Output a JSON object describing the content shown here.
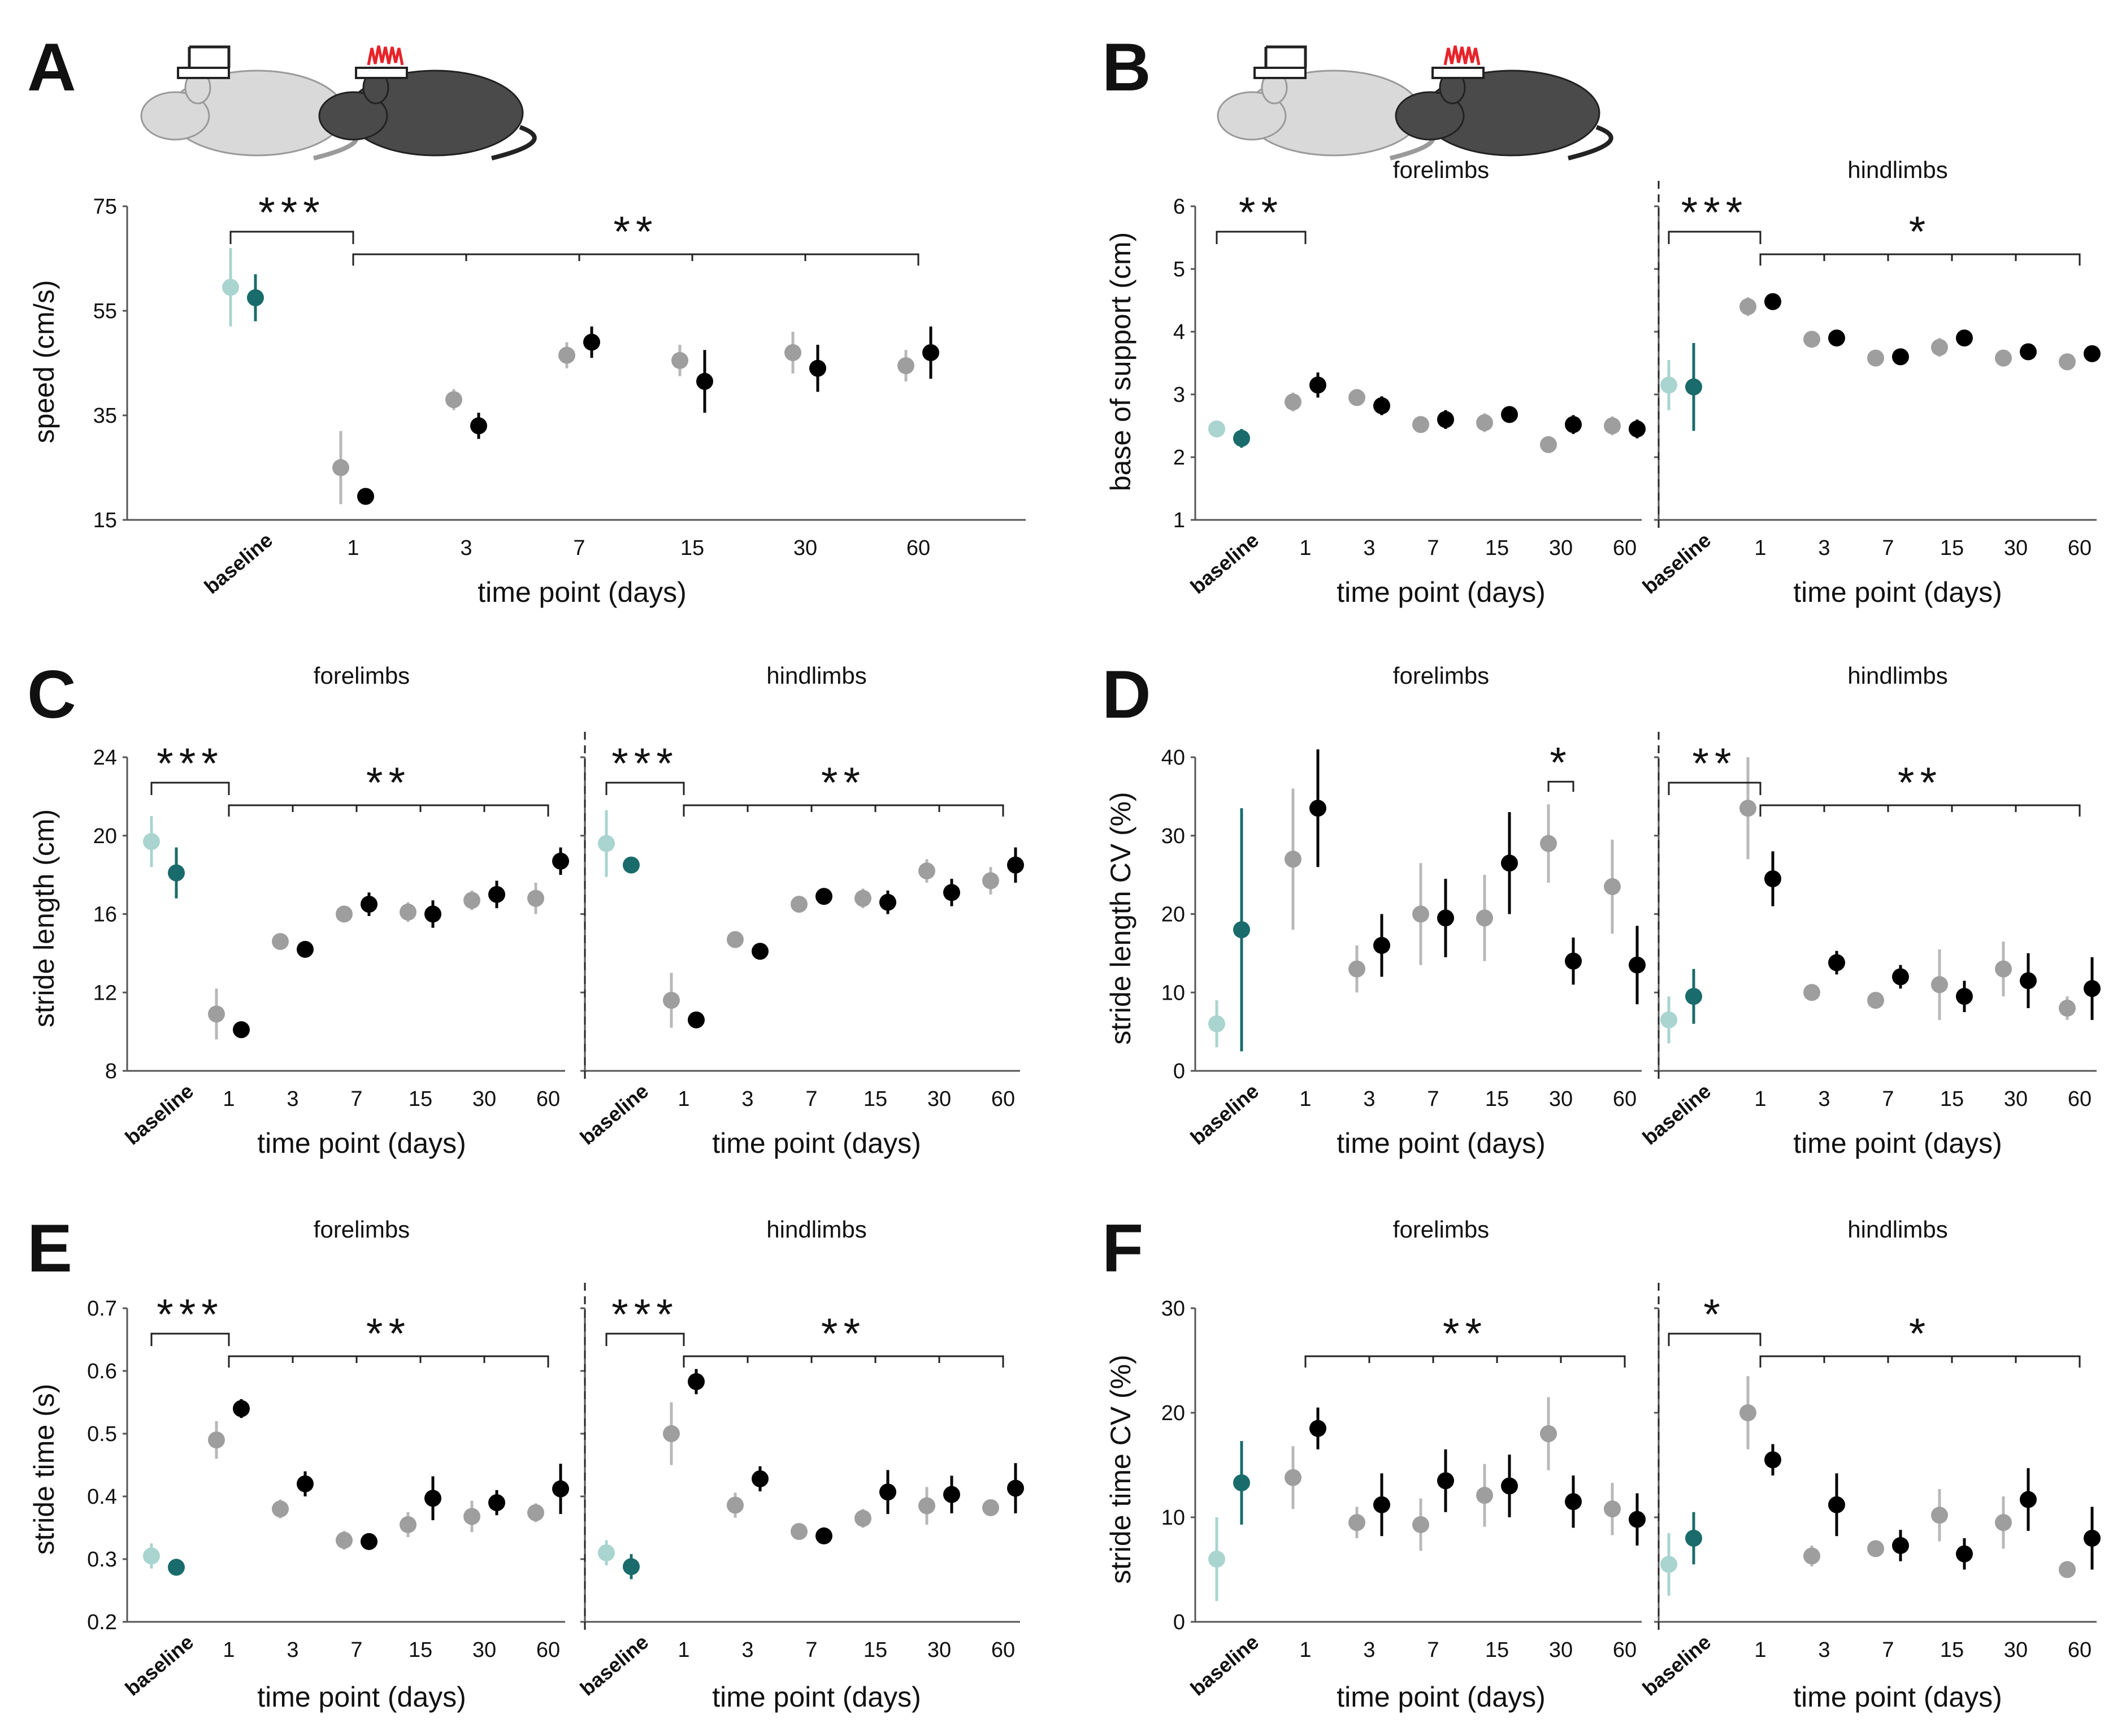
{
  "colors": {
    "sham_baseline": "#a9d4cf",
    "tbi_baseline": "#1a6b6b",
    "sham": "#9e9e9e",
    "tbi": "#000000",
    "error_sham_baseline": "#a9d4cf",
    "error_tbi_baseline": "#1a6b6b",
    "error_sham": "#b8b8b8",
    "error_tbi": "#000000",
    "mouse_sham": "#d9d9d9",
    "mouse_tbi": "#4a4a4a",
    "implant_sham": "#ffffff",
    "implant_tbi": "#e8232a"
  },
  "icons": {
    "sham_mouse": "mouse-sham-icon",
    "tbi_mouse": "mouse-tbi-icon"
  },
  "chart_data": [
    {
      "type": "scatter",
      "panel": "A",
      "ylabel": "speed (cm/s)",
      "xlabel": "time point (days)",
      "baseline_label": "baseline",
      "x_ticks": [
        "1",
        "3",
        "7",
        "15",
        "30",
        "60"
      ],
      "ylim": [
        15,
        75
      ],
      "y_ticks": [
        "15",
        "35",
        "55",
        "75"
      ],
      "subplots": [
        {
          "title": "",
          "baseline": {
            "sham": {
              "mean": 59.5,
              "err": 7.5
            },
            "tbi": {
              "mean": 57.5,
              "err": 4.5
            }
          },
          "sham": {
            "mean": [
              25,
              38,
              46.5,
              45.5,
              47,
              44.5
            ],
            "err": [
              7,
              2,
              2.5,
              3,
              4,
              3
            ]
          },
          "tbi": {
            "mean": [
              19.5,
              33,
              49,
              41.5,
              44,
              47
            ],
            "err": [
              1,
              2.5,
              3,
              6,
              4.5,
              5
            ]
          },
          "sig": [
            {
              "label": "***",
              "span": "baseline-1"
            },
            {
              "label": "**",
              "from": "1",
              "to": "60"
            }
          ]
        }
      ]
    },
    {
      "type": "scatter",
      "panel": "B",
      "ylabel": "base of support (cm)",
      "xlabel": "time point (days)",
      "baseline_label": "baseline",
      "x_ticks": [
        "1",
        "3",
        "7",
        "15",
        "30",
        "60"
      ],
      "ylim": [
        1,
        6
      ],
      "y_ticks": [
        "1",
        "2",
        "3",
        "4",
        "5",
        "6"
      ],
      "subplots": [
        {
          "title": "forelimbs",
          "baseline": {
            "sham": {
              "mean": 2.45,
              "err": 0.1
            },
            "tbi": {
              "mean": 2.3,
              "err": 0.15
            }
          },
          "sham": {
            "mean": [
              2.88,
              2.95,
              2.52,
              2.55,
              2.2,
              2.5
            ],
            "err": [
              0.15,
              0.1,
              0.1,
              0.15,
              0.1,
              0.15
            ]
          },
          "tbi": {
            "mean": [
              3.15,
              2.82,
              2.6,
              2.68,
              2.52,
              2.45
            ],
            "err": [
              0.2,
              0.15,
              0.15,
              0.1,
              0.15,
              0.15
            ]
          },
          "sig": [
            {
              "label": "**",
              "span": "baseline-1"
            }
          ]
        },
        {
          "title": "hindlimbs",
          "baseline": {
            "sham": {
              "mean": 3.15,
              "err": 0.4
            },
            "tbi": {
              "mean": 3.12,
              "err": 0.7
            }
          },
          "sham": {
            "mean": [
              4.4,
              3.88,
              3.58,
              3.75,
              3.58,
              3.52
            ],
            "err": [
              0.15,
              0.1,
              0.08,
              0.15,
              0.08,
              0.1
            ]
          },
          "tbi": {
            "mean": [
              4.48,
              3.9,
              3.6,
              3.9,
              3.68,
              3.65
            ],
            "err": [
              0.08,
              0.08,
              0.1,
              0.08,
              0.08,
              0.12
            ]
          },
          "sig": [
            {
              "label": "***",
              "span": "baseline-1"
            },
            {
              "label": "*",
              "from": "1",
              "to": "60"
            }
          ]
        }
      ]
    },
    {
      "type": "scatter",
      "panel": "C",
      "ylabel": "stride length (cm)",
      "xlabel": "time point (days)",
      "baseline_label": "baseline",
      "x_ticks": [
        "1",
        "3",
        "7",
        "15",
        "30",
        "60"
      ],
      "ylim": [
        8,
        24
      ],
      "y_ticks": [
        "8",
        "12",
        "16",
        "20",
        "24"
      ],
      "subplots": [
        {
          "title": "forelimbs",
          "baseline": {
            "sham": {
              "mean": 19.7,
              "err": 1.3
            },
            "tbi": {
              "mean": 18.1,
              "err": 1.3
            }
          },
          "sham": {
            "mean": [
              10.9,
              14.6,
              16.0,
              16.1,
              16.7,
              16.8
            ],
            "err": [
              1.3,
              0.2,
              0.4,
              0.5,
              0.5,
              0.8
            ]
          },
          "tbi": {
            "mean": [
              10.1,
              14.2,
              16.5,
              16.0,
              17.0,
              18.7
            ],
            "err": [
              0.2,
              0.3,
              0.6,
              0.7,
              0.7,
              0.7
            ]
          },
          "sig": [
            {
              "label": "***",
              "span": "baseline-1"
            },
            {
              "label": "**",
              "from": "1",
              "to": "60"
            }
          ]
        },
        {
          "title": "hindlimbs",
          "baseline": {
            "sham": {
              "mean": 19.6,
              "err": 1.7
            },
            "tbi": {
              "mean": 18.5,
              "err": 0.4
            }
          },
          "sham": {
            "mean": [
              11.6,
              14.7,
              16.5,
              16.8,
              18.2,
              17.7
            ],
            "err": [
              1.4,
              0.2,
              0.3,
              0.5,
              0.6,
              0.7
            ]
          },
          "tbi": {
            "mean": [
              10.6,
              14.1,
              16.9,
              16.6,
              17.1,
              18.5
            ],
            "err": [
              0.2,
              0.3,
              0.4,
              0.6,
              0.7,
              0.9
            ]
          },
          "sig": [
            {
              "label": "***",
              "span": "baseline-1"
            },
            {
              "label": "**",
              "from": "1",
              "to": "60"
            }
          ]
        }
      ]
    },
    {
      "type": "scatter",
      "panel": "D",
      "ylabel": "stride length CV (%)",
      "xlabel": "time point (days)",
      "baseline_label": "baseline",
      "x_ticks": [
        "1",
        "3",
        "7",
        "15",
        "30",
        "60"
      ],
      "ylim": [
        0,
        40
      ],
      "y_ticks": [
        "0",
        "10",
        "20",
        "30",
        "40"
      ],
      "subplots": [
        {
          "title": "forelimbs",
          "baseline": {
            "sham": {
              "mean": 6,
              "err": 3
            },
            "tbi": {
              "mean": 18,
              "err": 15.5
            }
          },
          "sham": {
            "mean": [
              27,
              13,
              20,
              19.5,
              29,
              23.5
            ],
            "err": [
              9,
              3,
              6.5,
              5.5,
              5,
              6
            ]
          },
          "tbi": {
            "mean": [
              33.5,
              16,
              19.5,
              26.5,
              14,
              13.5
            ],
            "err": [
              7.5,
              4,
              5,
              6.5,
              3,
              5
            ]
          },
          "sig": [
            {
              "label": "*",
              "span": "30-pair"
            }
          ]
        },
        {
          "title": "hindlimbs",
          "baseline": {
            "sham": {
              "mean": 6.5,
              "err": 3
            },
            "tbi": {
              "mean": 9.5,
              "err": 3.5
            }
          },
          "sham": {
            "mean": [
              33.5,
              10,
              9,
              11,
              13,
              8
            ],
            "err": [
              6.5,
              1,
              1,
              4.5,
              3.5,
              1.5
            ]
          },
          "tbi": {
            "mean": [
              24.5,
              13.8,
              12,
              9.5,
              11.5,
              10.5
            ],
            "err": [
              3.5,
              1.5,
              1.5,
              2,
              3.5,
              4
            ]
          },
          "sig": [
            {
              "label": "**",
              "span": "baseline-1"
            },
            {
              "label": "**",
              "from": "1",
              "to": "60"
            }
          ]
        }
      ]
    },
    {
      "type": "scatter",
      "panel": "E",
      "ylabel": "stride time (s)",
      "xlabel": "time point (days)",
      "baseline_label": "baseline",
      "x_ticks": [
        "1",
        "3",
        "7",
        "15",
        "30",
        "60"
      ],
      "ylim": [
        0.2,
        0.7
      ],
      "y_ticks": [
        "0.2",
        "0.3",
        "0.4",
        "0.5",
        "0.6",
        "0.7"
      ],
      "subplots": [
        {
          "title": "forelimbs",
          "baseline": {
            "sham": {
              "mean": 0.305,
              "err": 0.02
            },
            "tbi": {
              "mean": 0.287,
              "err": 0.01
            }
          },
          "sham": {
            "mean": [
              0.49,
              0.38,
              0.33,
              0.355,
              0.368,
              0.374
            ],
            "err": [
              0.03,
              0.015,
              0.015,
              0.02,
              0.025,
              0.015
            ]
          },
          "tbi": {
            "mean": [
              0.54,
              0.42,
              0.328,
              0.397,
              0.39,
              0.412
            ],
            "err": [
              0.015,
              0.02,
              0.01,
              0.035,
              0.02,
              0.04
            ]
          },
          "sig": [
            {
              "label": "***",
              "span": "baseline-1"
            },
            {
              "label": "**",
              "from": "1",
              "to": "60"
            }
          ]
        },
        {
          "title": "hindlimbs",
          "baseline": {
            "sham": {
              "mean": 0.31,
              "err": 0.02
            },
            "tbi": {
              "mean": 0.288,
              "err": 0.02
            }
          },
          "sham": {
            "mean": [
              0.5,
              0.386,
              0.344,
              0.365,
              0.385,
              0.382
            ],
            "err": [
              0.05,
              0.02,
              0.01,
              0.015,
              0.03,
              0.01
            ]
          },
          "tbi": {
            "mean": [
              0.583,
              0.428,
              0.337,
              0.407,
              0.403,
              0.413
            ],
            "err": [
              0.02,
              0.02,
              0.01,
              0.035,
              0.03,
              0.04
            ]
          },
          "sig": [
            {
              "label": "***",
              "span": "baseline-1"
            },
            {
              "label": "**",
              "from": "1",
              "to": "60"
            }
          ]
        }
      ]
    },
    {
      "type": "scatter",
      "panel": "F",
      "ylabel": "stride time CV (%)",
      "xlabel": "time point (days)",
      "baseline_label": "baseline",
      "x_ticks": [
        "1",
        "3",
        "7",
        "15",
        "30",
        "60"
      ],
      "ylim": [
        0,
        30
      ],
      "y_ticks": [
        "0",
        "10",
        "20",
        "30"
      ],
      "subplots": [
        {
          "title": "forelimbs",
          "baseline": {
            "sham": {
              "mean": 6,
              "err": 4
            },
            "tbi": {
              "mean": 13.3,
              "err": 4
            }
          },
          "sham": {
            "mean": [
              13.8,
              9.5,
              9.3,
              12.1,
              18,
              10.8
            ],
            "err": [
              3,
              1.5,
              2.5,
              3,
              3.5,
              2.5
            ]
          },
          "tbi": {
            "mean": [
              18.5,
              11.2,
              13.5,
              13,
              11.5,
              9.8
            ],
            "err": [
              2,
              3,
              3,
              3,
              2.5,
              2.5
            ]
          },
          "sig": [
            {
              "label": "**",
              "from": "1",
              "to": "60"
            }
          ]
        },
        {
          "title": "hindlimbs",
          "baseline": {
            "sham": {
              "mean": 5.5,
              "err": 3
            },
            "tbi": {
              "mean": 8,
              "err": 2.5
            }
          },
          "sham": {
            "mean": [
              20,
              6.3,
              7,
              10.2,
              9.5,
              5
            ],
            "err": [
              3.5,
              1,
              0.5,
              2.5,
              2.5,
              0.5
            ]
          },
          "tbi": {
            "mean": [
              15.5,
              11.2,
              7.3,
              6.5,
              11.7,
              8
            ],
            "err": [
              1.5,
              3,
              1.5,
              1.5,
              3,
              3
            ]
          },
          "sig": [
            {
              "label": "*",
              "span": "baseline-1"
            },
            {
              "label": "*",
              "from": "1",
              "to": "60"
            }
          ]
        }
      ]
    }
  ]
}
